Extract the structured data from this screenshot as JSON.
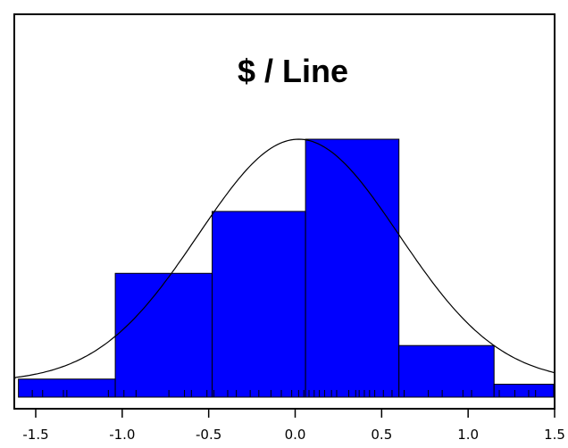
{
  "chart_data": {
    "type": "bar",
    "subtype": "histogram-with-density-curve",
    "title": "$ / Line",
    "xlabel": "",
    "ylabel": "",
    "xlim": [
      -1.7,
      1.5
    ],
    "x_ticks": [
      -1.5,
      -1.0,
      -0.5,
      0.0,
      0.5,
      1.0,
      1.5
    ],
    "x_tick_labels": [
      "-1.5",
      "-1.0",
      "-0.5",
      "0.0",
      "0.5",
      "1.0",
      "1.5"
    ],
    "bins": [
      {
        "x0": -1.6,
        "x1": -1.04,
        "height": 0.07
      },
      {
        "x0": -1.04,
        "x1": -0.48,
        "height": 0.48
      },
      {
        "x0": -0.48,
        "x1": 0.06,
        "height": 0.72
      },
      {
        "x0": 0.06,
        "x1": 0.6,
        "height": 1.0
      },
      {
        "x0": 0.6,
        "x1": 1.15,
        "height": 0.2
      },
      {
        "x0": 1.15,
        "x1": 1.5,
        "height": 0.05
      }
    ],
    "ymax": 1.0,
    "density_curve": {
      "mean": 0.02,
      "sd": 0.58,
      "peak": 1.0
    },
    "rug": [
      -1.52,
      -1.46,
      -1.34,
      -1.32,
      -1.08,
      -0.99,
      -0.92,
      -0.73,
      -0.64,
      -0.6,
      -0.51,
      -0.47,
      -0.39,
      -0.34,
      -0.26,
      -0.21,
      -0.14,
      -0.08,
      -0.02,
      0.02,
      0.05,
      0.08,
      0.11,
      0.14,
      0.17,
      0.21,
      0.24,
      0.31,
      0.35,
      0.37,
      0.4,
      0.43,
      0.46,
      0.51,
      0.56,
      0.63,
      0.77,
      0.85,
      0.97,
      1.02,
      1.18,
      1.27,
      1.35,
      1.39
    ],
    "grid": false,
    "legend": "none",
    "colors": {
      "bar_fill": "#0000ff",
      "bar_stroke": "#000000",
      "curve": "#000000",
      "axis": "#000000"
    }
  }
}
